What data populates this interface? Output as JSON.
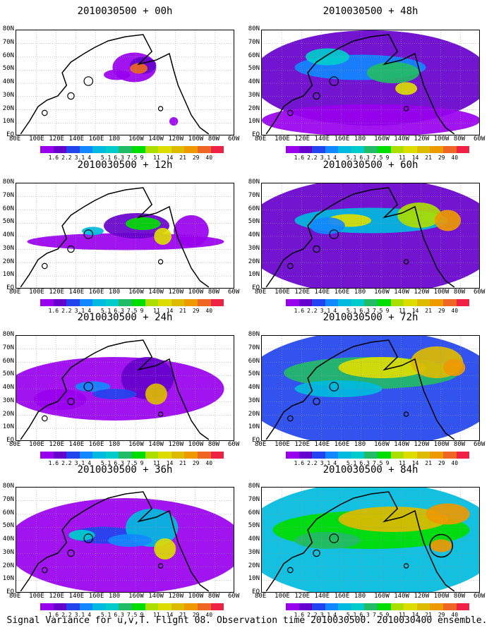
{
  "caption": "Signal Variance for u,v,T. Flight 08. Observation time 2010030500. 2010030400 ensemble.",
  "colors": [
    "#9900ee",
    "#6600cc",
    "#2244ee",
    "#1188ff",
    "#00bbdd",
    "#00cccc",
    "#22bb66",
    "#00dd00",
    "#aadd00",
    "#dddd00",
    "#ddbb00",
    "#ee9900",
    "#ee6622",
    "#ee2244",
    "#ee1188"
  ],
  "chart_data": {
    "type": "heatmap",
    "panels": [
      {
        "title": "2010030500 + 00h"
      },
      {
        "title": "2010030500 + 12h"
      },
      {
        "title": "2010030500 + 24h"
      },
      {
        "title": "2010030500 + 36h"
      },
      {
        "title": "2010030500 + 48h"
      },
      {
        "title": "2010030500 + 60h"
      },
      {
        "title": "2010030500 + 72h"
      },
      {
        "title": "2010030500 + 84h"
      }
    ],
    "x_ticks": [
      "80E",
      "100E",
      "120E",
      "140E",
      "160E",
      "180",
      "160W",
      "140W",
      "120W",
      "100W",
      "80W",
      "60W"
    ],
    "y_ticks": [
      "EQ",
      "10N",
      "20N",
      "30N",
      "40N",
      "50N",
      "60N",
      "70N",
      "80N"
    ],
    "legend_values": [
      "1.6",
      "2.2",
      "3.1",
      "4",
      "5.1",
      "6.3",
      "7.5",
      "9",
      "11",
      "14",
      "21",
      "29",
      "40"
    ],
    "xlim": [
      "80E",
      "60W"
    ],
    "ylim": [
      "EQ",
      "80N"
    ]
  }
}
